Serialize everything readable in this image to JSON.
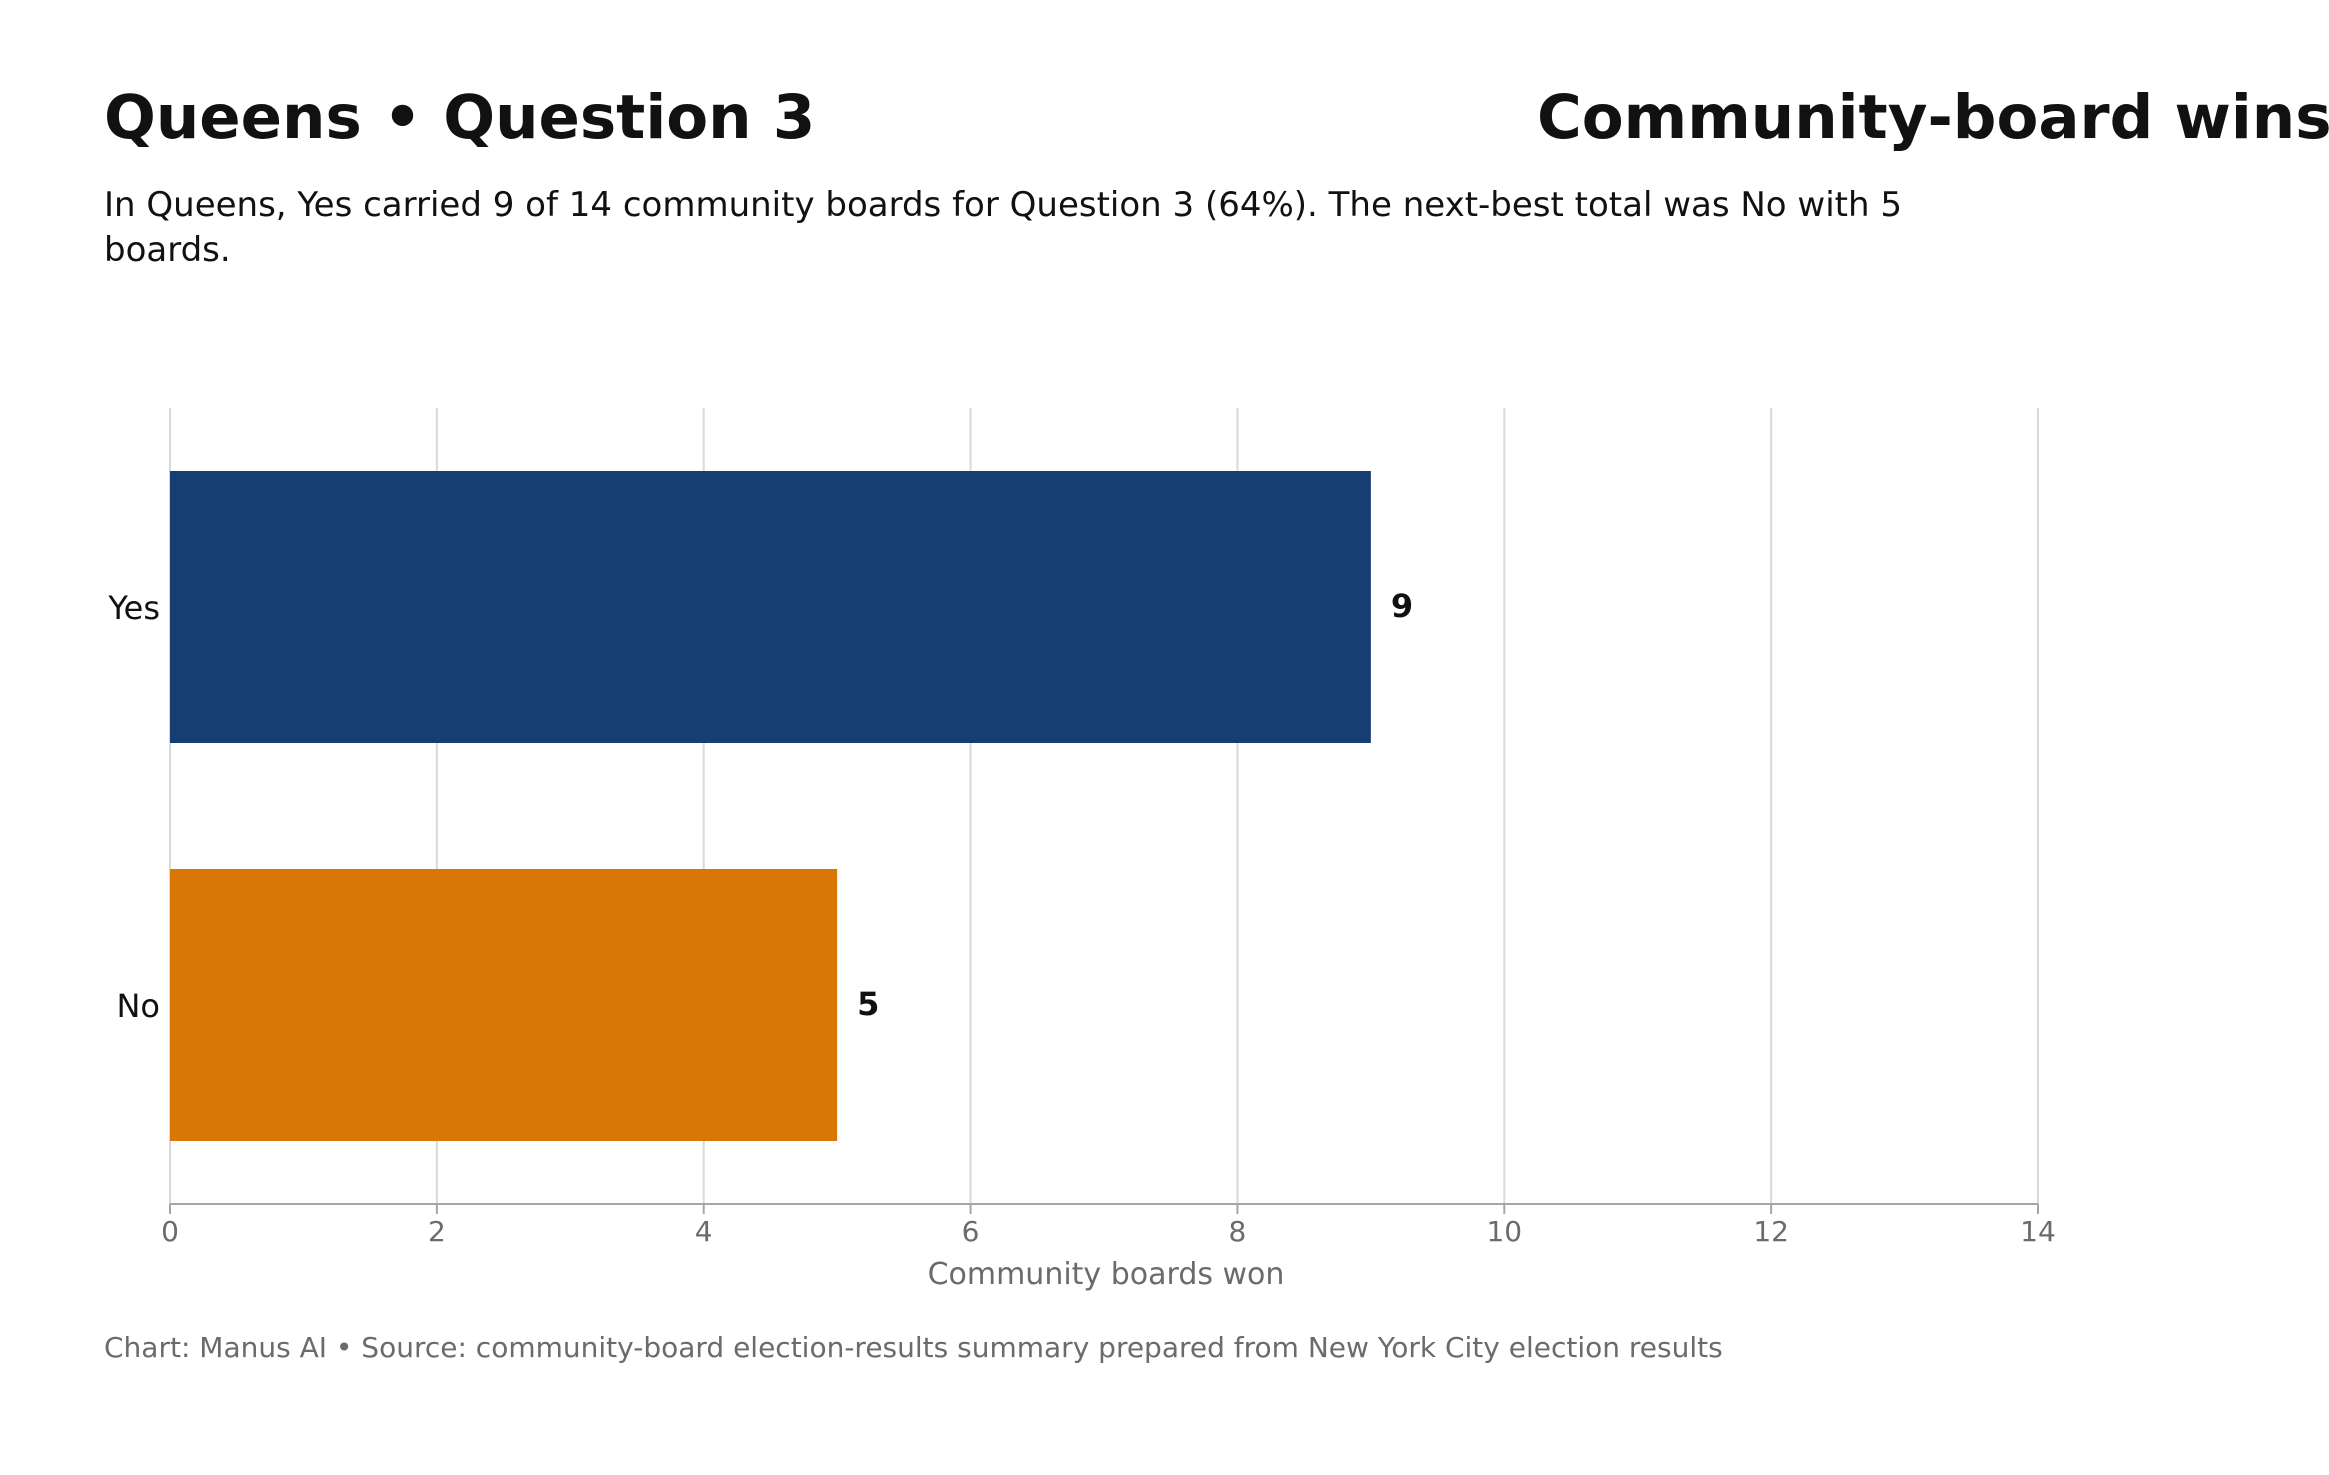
{
  "header": {
    "title_left": "Queens • Question 3",
    "title_right": "Community-board wins",
    "subtitle": "In Queens, Yes carried 9 of 14 community boards for Question 3 (64%). The next-best total was No with 5 boards."
  },
  "footer": {
    "credit": "Chart: Manus AI • Source: community-board election-results summary prepared from New York City election results"
  },
  "chart_data": {
    "type": "bar",
    "orientation": "horizontal",
    "categories": [
      "Yes",
      "No"
    ],
    "values": [
      9,
      5
    ],
    "colors": [
      "#173e72",
      "#d97706"
    ],
    "xlabel": "Community boards won",
    "ylabel": "",
    "xlim": [
      0,
      14
    ],
    "xticks": [
      0,
      2,
      4,
      6,
      8,
      10,
      12,
      14
    ],
    "grid": true,
    "grid_color": "#d9d9d9",
    "axis_color": "#a6a6a6"
  }
}
